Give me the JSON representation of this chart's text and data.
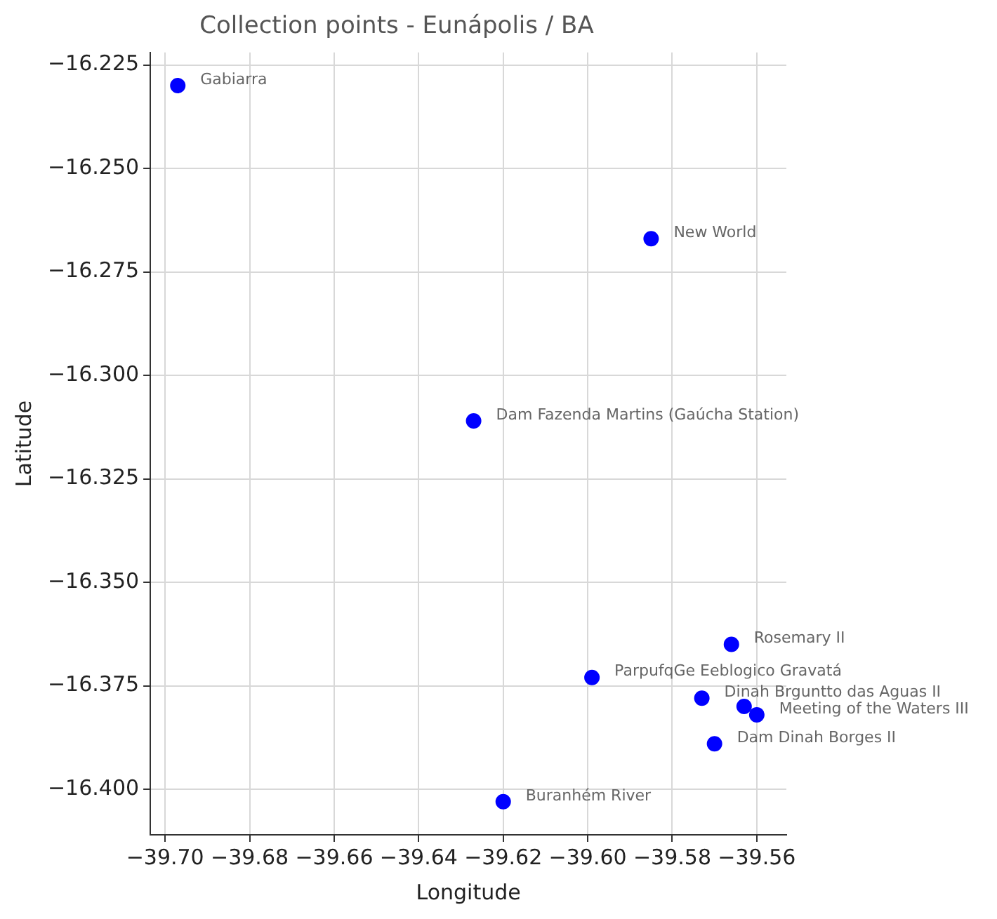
{
  "chart_data": {
    "type": "scatter",
    "title": "Collection points - Eunápolis / BA",
    "xlabel": "Longitude",
    "ylabel": "Latitude",
    "x": [
      -39.697,
      -39.585,
      -39.627,
      -39.566,
      -39.599,
      -39.573,
      -39.563,
      -39.56,
      -39.57,
      -39.62
    ],
    "values": [
      -16.23,
      -16.267,
      -16.311,
      -16.365,
      -16.373,
      -16.378,
      -16.38,
      -16.382,
      -16.389,
      -16.403
    ],
    "color": "#0000ff",
    "marker": "circle",
    "grid": true,
    "legend": false,
    "xlim": [
      -39.7035,
      -39.553
    ],
    "ylim": [
      -16.411,
      -16.222
    ],
    "xticks": [
      {
        "value": -39.7,
        "label": "−39.70"
      },
      {
        "value": -39.68,
        "label": "−39.68"
      },
      {
        "value": -39.66,
        "label": "−39.66"
      },
      {
        "value": -39.64,
        "label": "−39.64"
      },
      {
        "value": -39.62,
        "label": "−39.62"
      },
      {
        "value": -39.6,
        "label": "−39.60"
      },
      {
        "value": -39.58,
        "label": "−39.58"
      },
      {
        "value": -39.56,
        "label": "−39.56"
      }
    ],
    "yticks": [
      {
        "value": -16.4,
        "label": "−16.400"
      },
      {
        "value": -16.375,
        "label": "−16.375"
      },
      {
        "value": -16.35,
        "label": "−16.350"
      },
      {
        "value": -16.325,
        "label": "−16.325"
      },
      {
        "value": -16.3,
        "label": "−16.300"
      },
      {
        "value": -16.275,
        "label": "−16.275"
      },
      {
        "value": -16.25,
        "label": "−16.250"
      },
      {
        "value": -16.225,
        "label": "−16.225"
      }
    ],
    "annotations": [
      {
        "text": "Gabiarra",
        "x": -39.697,
        "y": -16.23
      },
      {
        "text": "New World",
        "x": -39.585,
        "y": -16.267
      },
      {
        "text": "Dam Fazenda Martins (Gaúcha Station)",
        "x": -39.627,
        "y": -16.311
      },
      {
        "text": "Rosemary II",
        "x": -39.566,
        "y": -16.365
      },
      {
        "text": "ParpufqGe Eeblogico Gravatá",
        "x": -39.599,
        "y": -16.373
      },
      {
        "text": "Dinah Brguntto das Aguas II",
        "x": -39.573,
        "y": -16.378
      },
      {
        "text": "Meeting of the Waters III",
        "x": -39.56,
        "y": -16.382
      },
      {
        "text": "Dam Dinah Borges II",
        "x": -39.57,
        "y": -16.389
      },
      {
        "text": "Buranhém River",
        "x": -39.62,
        "y": -16.403
      }
    ]
  }
}
